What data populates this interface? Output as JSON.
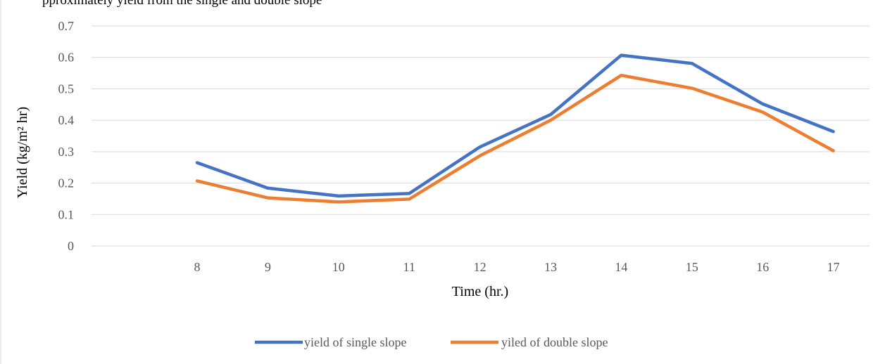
{
  "caption_fragment": "pproximately yield from the single and double slope",
  "chart_data": {
    "type": "line",
    "title": "",
    "xlabel": "Time (hr.)",
    "ylabel": "Yield (kg/m² hr)",
    "categories": [
      "8",
      "9",
      "10",
      "11",
      "12",
      "13",
      "14",
      "15",
      "16",
      "17"
    ],
    "ylim": [
      0,
      0.7
    ],
    "yticks": [
      0,
      0.1,
      0.2,
      0.3,
      0.4,
      0.5,
      0.6,
      0.7
    ],
    "ytick_labels": [
      "0",
      "0.1",
      "0.2",
      "0.3",
      "0.4",
      "0.5",
      "0.6",
      "0.7"
    ],
    "grid": true,
    "legend_position": "bottom",
    "series": [
      {
        "name": "yield of single slope",
        "color": "#4472C4",
        "values": [
          0.265,
          0.184,
          0.159,
          0.167,
          0.315,
          0.418,
          0.607,
          0.581,
          0.452,
          0.364
        ]
      },
      {
        "name": "yiled of double slope",
        "color": "#ED7D31",
        "values": [
          0.207,
          0.153,
          0.14,
          0.149,
          0.287,
          0.4,
          0.543,
          0.502,
          0.426,
          0.303
        ]
      }
    ]
  }
}
